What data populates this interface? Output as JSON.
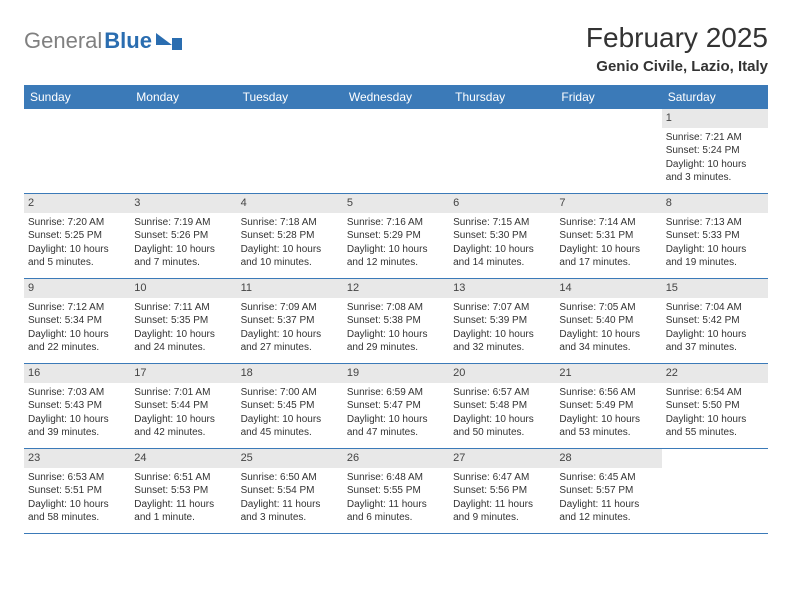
{
  "logo": {
    "text_gray": "General",
    "text_blue": "Blue"
  },
  "header": {
    "month_title": "February 2025",
    "subtitle": "Genio Civile, Lazio, Italy"
  },
  "day_names": [
    "Sunday",
    "Monday",
    "Tuesday",
    "Wednesday",
    "Thursday",
    "Friday",
    "Saturday"
  ],
  "colors": {
    "header_bg": "#3b7ab8",
    "header_text": "#ffffff",
    "divider": "#3b7ab8",
    "daynum_bg": "#e8e8e8",
    "logo_gray": "#808080",
    "logo_blue": "#2a6db0"
  },
  "weeks": [
    [
      null,
      null,
      null,
      null,
      null,
      null,
      {
        "n": "1",
        "sr": "Sunrise: 7:21 AM",
        "ss": "Sunset: 5:24 PM",
        "dl": "Daylight: 10 hours and 3 minutes."
      }
    ],
    [
      {
        "n": "2",
        "sr": "Sunrise: 7:20 AM",
        "ss": "Sunset: 5:25 PM",
        "dl": "Daylight: 10 hours and 5 minutes."
      },
      {
        "n": "3",
        "sr": "Sunrise: 7:19 AM",
        "ss": "Sunset: 5:26 PM",
        "dl": "Daylight: 10 hours and 7 minutes."
      },
      {
        "n": "4",
        "sr": "Sunrise: 7:18 AM",
        "ss": "Sunset: 5:28 PM",
        "dl": "Daylight: 10 hours and 10 minutes."
      },
      {
        "n": "5",
        "sr": "Sunrise: 7:16 AM",
        "ss": "Sunset: 5:29 PM",
        "dl": "Daylight: 10 hours and 12 minutes."
      },
      {
        "n": "6",
        "sr": "Sunrise: 7:15 AM",
        "ss": "Sunset: 5:30 PM",
        "dl": "Daylight: 10 hours and 14 minutes."
      },
      {
        "n": "7",
        "sr": "Sunrise: 7:14 AM",
        "ss": "Sunset: 5:31 PM",
        "dl": "Daylight: 10 hours and 17 minutes."
      },
      {
        "n": "8",
        "sr": "Sunrise: 7:13 AM",
        "ss": "Sunset: 5:33 PM",
        "dl": "Daylight: 10 hours and 19 minutes."
      }
    ],
    [
      {
        "n": "9",
        "sr": "Sunrise: 7:12 AM",
        "ss": "Sunset: 5:34 PM",
        "dl": "Daylight: 10 hours and 22 minutes."
      },
      {
        "n": "10",
        "sr": "Sunrise: 7:11 AM",
        "ss": "Sunset: 5:35 PM",
        "dl": "Daylight: 10 hours and 24 minutes."
      },
      {
        "n": "11",
        "sr": "Sunrise: 7:09 AM",
        "ss": "Sunset: 5:37 PM",
        "dl": "Daylight: 10 hours and 27 minutes."
      },
      {
        "n": "12",
        "sr": "Sunrise: 7:08 AM",
        "ss": "Sunset: 5:38 PM",
        "dl": "Daylight: 10 hours and 29 minutes."
      },
      {
        "n": "13",
        "sr": "Sunrise: 7:07 AM",
        "ss": "Sunset: 5:39 PM",
        "dl": "Daylight: 10 hours and 32 minutes."
      },
      {
        "n": "14",
        "sr": "Sunrise: 7:05 AM",
        "ss": "Sunset: 5:40 PM",
        "dl": "Daylight: 10 hours and 34 minutes."
      },
      {
        "n": "15",
        "sr": "Sunrise: 7:04 AM",
        "ss": "Sunset: 5:42 PM",
        "dl": "Daylight: 10 hours and 37 minutes."
      }
    ],
    [
      {
        "n": "16",
        "sr": "Sunrise: 7:03 AM",
        "ss": "Sunset: 5:43 PM",
        "dl": "Daylight: 10 hours and 39 minutes."
      },
      {
        "n": "17",
        "sr": "Sunrise: 7:01 AM",
        "ss": "Sunset: 5:44 PM",
        "dl": "Daylight: 10 hours and 42 minutes."
      },
      {
        "n": "18",
        "sr": "Sunrise: 7:00 AM",
        "ss": "Sunset: 5:45 PM",
        "dl": "Daylight: 10 hours and 45 minutes."
      },
      {
        "n": "19",
        "sr": "Sunrise: 6:59 AM",
        "ss": "Sunset: 5:47 PM",
        "dl": "Daylight: 10 hours and 47 minutes."
      },
      {
        "n": "20",
        "sr": "Sunrise: 6:57 AM",
        "ss": "Sunset: 5:48 PM",
        "dl": "Daylight: 10 hours and 50 minutes."
      },
      {
        "n": "21",
        "sr": "Sunrise: 6:56 AM",
        "ss": "Sunset: 5:49 PM",
        "dl": "Daylight: 10 hours and 53 minutes."
      },
      {
        "n": "22",
        "sr": "Sunrise: 6:54 AM",
        "ss": "Sunset: 5:50 PM",
        "dl": "Daylight: 10 hours and 55 minutes."
      }
    ],
    [
      {
        "n": "23",
        "sr": "Sunrise: 6:53 AM",
        "ss": "Sunset: 5:51 PM",
        "dl": "Daylight: 10 hours and 58 minutes."
      },
      {
        "n": "24",
        "sr": "Sunrise: 6:51 AM",
        "ss": "Sunset: 5:53 PM",
        "dl": "Daylight: 11 hours and 1 minute."
      },
      {
        "n": "25",
        "sr": "Sunrise: 6:50 AM",
        "ss": "Sunset: 5:54 PM",
        "dl": "Daylight: 11 hours and 3 minutes."
      },
      {
        "n": "26",
        "sr": "Sunrise: 6:48 AM",
        "ss": "Sunset: 5:55 PM",
        "dl": "Daylight: 11 hours and 6 minutes."
      },
      {
        "n": "27",
        "sr": "Sunrise: 6:47 AM",
        "ss": "Sunset: 5:56 PM",
        "dl": "Daylight: 11 hours and 9 minutes."
      },
      {
        "n": "28",
        "sr": "Sunrise: 6:45 AM",
        "ss": "Sunset: 5:57 PM",
        "dl": "Daylight: 11 hours and 12 minutes."
      },
      null
    ]
  ]
}
